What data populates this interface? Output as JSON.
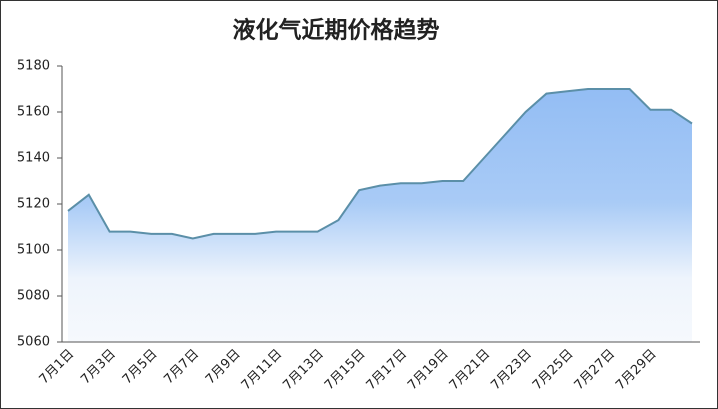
{
  "chart_data": {
    "type": "area",
    "title": "液化气近期价格趋势",
    "categories": [
      "7月1日",
      null,
      "7月3日",
      null,
      "7月5日",
      null,
      "7月7日",
      null,
      "7月9日",
      null,
      "7月11日",
      null,
      "7月13日",
      null,
      "7月15日",
      null,
      "7月17日",
      null,
      "7月19日",
      null,
      "7月21日",
      null,
      "7月23日",
      null,
      "7月25日",
      null,
      "7月27日",
      null,
      "7月29日",
      null,
      null
    ],
    "values": [
      5117,
      5124,
      5108,
      5108,
      5107,
      5107,
      5105,
      5107,
      5107,
      5107,
      5108,
      5108,
      5108,
      5113,
      5126,
      5128,
      5129,
      5129,
      5130,
      5130,
      5140,
      5150,
      5160,
      5168,
      5169,
      5170,
      5170,
      5170,
      5161,
      5161,
      5155
    ],
    "color": "#5b8fa8",
    "ylim": [
      5060,
      5180
    ],
    "yticks": [
      5060,
      5080,
      5100,
      5120,
      5140,
      5160,
      5180
    ]
  }
}
